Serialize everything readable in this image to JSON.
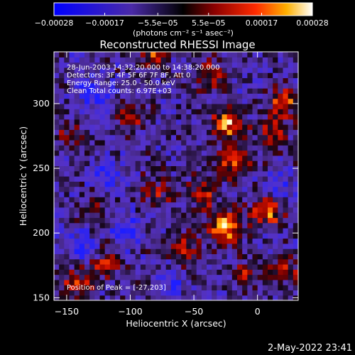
{
  "chart_data": {
    "type": "heatmap",
    "title": "Reconstructed RHESSI Image",
    "xlabel": "Heliocentric X (arcsec)",
    "ylabel": "Heliocentric Y (arcsec)",
    "xlim": [
      -160,
      32
    ],
    "ylim": [
      148,
      340
    ],
    "x_ticks": [
      -150,
      -100,
      -50,
      0
    ],
    "y_ticks": [
      150,
      200,
      250,
      300
    ],
    "x_tick_labels": [
      "−150",
      "−100",
      "−50",
      "0"
    ],
    "y_tick_labels": [
      "150",
      "200",
      "250",
      "300"
    ],
    "colorbar": {
      "range": [
        -0.00028,
        0.00028
      ],
      "ticks": [
        -0.00028,
        -0.00017,
        -5.5e-05,
        5.5e-05,
        0.00017,
        0.00028
      ],
      "tick_labels": [
        "−0.00028",
        "−0.00017",
        "−5.5e−05",
        "5.5e−05",
        "0.00017",
        "0.00028"
      ],
      "unit_label": "(photons cm⁻² s⁻¹ asec⁻²)"
    },
    "annotations": [
      "28-Jun-2003 14:32:20.000 to 14:38:20.000",
      "Detectors: 3F 4F 5F 6F 7F 8F, Att 0",
      "Energy Range: 25.0 - 50.0 keV",
      "Clean     Total counts: 6.97E+03"
    ],
    "peak_label": "Position of Peak = [-27,203]",
    "peak": [
      -27,
      203
    ],
    "bright_regions": [
      {
        "x": -27,
        "y": 203,
        "level": 1.0
      },
      {
        "x": -25,
        "y": 282,
        "level": 0.9
      },
      {
        "x": -20,
        "y": 255,
        "level": 0.75
      },
      {
        "x": 5,
        "y": 215,
        "level": 0.8
      },
      {
        "x": -45,
        "y": 230,
        "level": 0.6
      },
      {
        "x": 18,
        "y": 300,
        "level": 0.7
      },
      {
        "x": 10,
        "y": 275,
        "level": 0.65
      },
      {
        "x": -85,
        "y": 340,
        "level": 0.7
      },
      {
        "x": -40,
        "y": 320,
        "level": 0.55
      },
      {
        "x": -145,
        "y": 160,
        "level": 0.65
      },
      {
        "x": -120,
        "y": 175,
        "level": 0.5
      },
      {
        "x": -100,
        "y": 290,
        "level": 0.45
      },
      {
        "x": -80,
        "y": 230,
        "level": 0.45
      },
      {
        "x": -60,
        "y": 185,
        "level": 0.55
      },
      {
        "x": -10,
        "y": 165,
        "level": 0.45
      },
      {
        "x": 20,
        "y": 170,
        "level": 0.55
      },
      {
        "x": -150,
        "y": 275,
        "level": 0.35
      },
      {
        "x": -130,
        "y": 215,
        "level": 0.3
      }
    ],
    "dim_regions": [
      {
        "x": -130,
        "y": 305,
        "level": -0.6
      },
      {
        "x": -120,
        "y": 245,
        "level": -0.5
      },
      {
        "x": -105,
        "y": 200,
        "level": -0.45
      },
      {
        "x": -140,
        "y": 190,
        "level": -0.4
      },
      {
        "x": -70,
        "y": 160,
        "level": -0.4
      },
      {
        "x": 15,
        "y": 235,
        "level": -0.4
      }
    ]
  },
  "timestamp": "2-May-2022 23:41"
}
